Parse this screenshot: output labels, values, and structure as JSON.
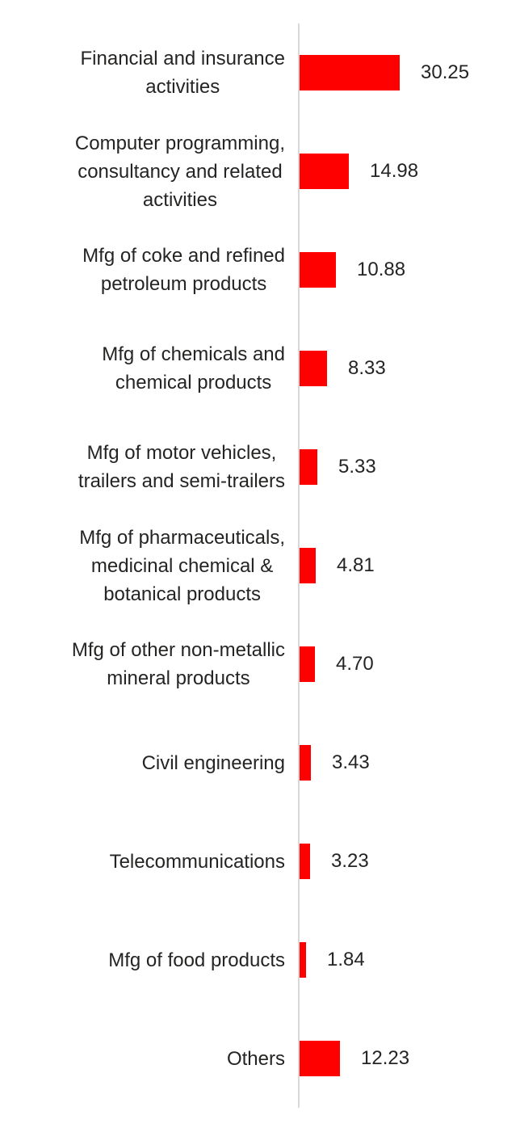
{
  "chart_data": {
    "type": "bar",
    "orientation": "horizontal",
    "title": "",
    "xlabel": "",
    "ylabel": "",
    "grid": false,
    "legend": false,
    "axis_range": [
      0,
      33
    ],
    "bar_color": "#FF0000",
    "axis_line_color": "#D9D9D9",
    "text_color": "#252423",
    "categories": [
      "Financial and insurance activities",
      "Computer programming, consultancy and related activities",
      "Mfg of coke and refined petroleum products",
      "Mfg of chemicals and chemical products",
      "Mfg of motor vehicles, trailers and semi-trailers",
      "Mfg of pharmaceuticals, medicinal chemical & botanical products",
      "Mfg of other non-metallic mineral products",
      "Civil engineering",
      "Telecommunications",
      "Mfg of food products",
      "Others"
    ],
    "label_lines": [
      [
        "Financial and insurance",
        "activities"
      ],
      [
        "Computer programming,",
        "consultancy and related",
        "activities"
      ],
      [
        "Mfg of coke and refined",
        "petroleum products"
      ],
      [
        "Mfg of chemicals and",
        "chemical products"
      ],
      [
        "Mfg of motor vehicles,",
        "trailers and semi-trailers"
      ],
      [
        "Mfg of pharmaceuticals,",
        "medicinal chemical &",
        "botanical products"
      ],
      [
        "Mfg of other non-metallic",
        "mineral products"
      ],
      [
        "Civil engineering"
      ],
      [
        "Telecommunications"
      ],
      [
        "Mfg of food products"
      ],
      [
        "Others"
      ]
    ],
    "values": [
      30.25,
      14.98,
      10.88,
      8.33,
      5.33,
      4.81,
      4.7,
      3.43,
      3.23,
      1.84,
      12.23
    ],
    "value_labels": [
      "30.25",
      "14.98",
      "10.88",
      "8.33",
      "5.33",
      "4.81",
      "4.70",
      "3.43",
      "3.23",
      "1.84",
      "12.23"
    ]
  }
}
